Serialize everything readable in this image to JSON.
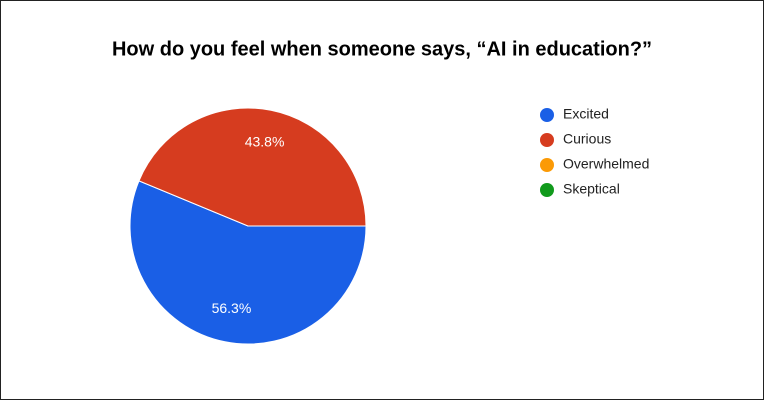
{
  "chart_data": {
    "type": "pie",
    "title": "How do you feel when someone says, “AI in education?”",
    "categories": [
      "Excited",
      "Curious",
      "Overwhelmed",
      "Skeptical"
    ],
    "values": [
      56.3,
      43.8,
      0,
      0
    ],
    "value_labels": [
      "56.3%",
      "43.8%",
      null,
      null
    ],
    "colors": [
      "#1a5fe6",
      "#d63c1f",
      "#fb9a06",
      "#119a1c"
    ],
    "legend": "right"
  }
}
